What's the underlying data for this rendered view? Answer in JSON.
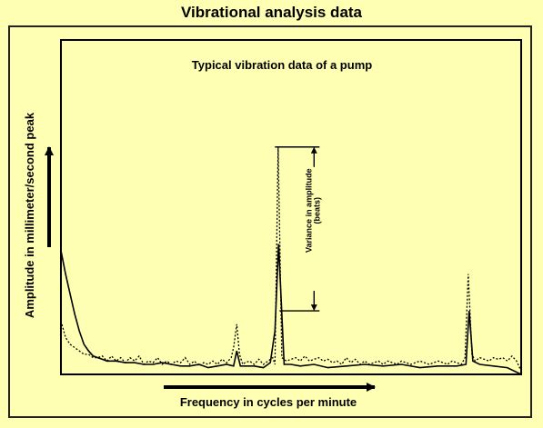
{
  "page": {
    "title": "Vibrational analysis data"
  },
  "chart_data": {
    "type": "line",
    "title": "Typical vibration data of a pump",
    "xlabel": "Frequency in cycles  per minute",
    "ylabel": "Amplitude in millimeter/second peak",
    "xlim": [
      0,
      100
    ],
    "ylim": [
      0,
      100
    ],
    "grid": false,
    "legend": "none",
    "series": [
      {
        "style": "solid",
        "color": "#000000",
        "x": [
          0,
          1,
          2,
          3,
          4,
          5,
          6,
          7,
          8,
          9,
          10,
          12,
          14,
          16,
          18,
          20,
          22,
          24,
          26,
          28,
          30,
          32,
          34,
          36,
          37.5,
          38.2,
          39,
          40,
          42,
          44,
          45.5,
          46.5,
          47.3,
          48.5,
          50,
          52,
          55,
          58,
          62,
          66,
          70,
          74,
          78,
          82,
          86,
          88,
          88.7,
          89.5,
          91,
          94,
          97,
          100
        ],
        "y": [
          37,
          30,
          24,
          18,
          13,
          9,
          7,
          5.5,
          5,
          4.5,
          4,
          4,
          3.5,
          3.5,
          3,
          3,
          3.5,
          3,
          2.5,
          2.5,
          3,
          2,
          2.5,
          3,
          2.5,
          7,
          2.5,
          2.5,
          2.5,
          2,
          3.5,
          13,
          39,
          3,
          3,
          2.5,
          3,
          2,
          2.5,
          3,
          2.5,
          3,
          2,
          2.5,
          2.5,
          3,
          19,
          4,
          3,
          2.5,
          2,
          0
        ]
      },
      {
        "style": "dotted",
        "color": "#000000",
        "x": [
          0,
          1,
          2,
          3,
          4,
          5,
          6,
          7,
          8,
          9,
          10,
          11,
          12,
          13,
          14,
          15,
          16,
          17,
          18,
          19,
          20,
          21,
          22,
          23,
          24,
          25,
          26,
          27,
          28,
          29,
          30,
          31,
          32,
          33,
          34,
          35,
          36,
          37,
          37.5,
          38.2,
          38.8,
          39.5,
          40,
          41,
          42,
          43,
          44,
          45,
          46,
          46.5,
          47.2,
          48,
          49,
          50,
          51,
          52,
          53,
          54,
          55,
          56,
          57,
          58,
          59,
          60,
          61,
          62,
          63,
          64,
          65,
          66,
          67,
          68,
          69,
          70,
          71,
          72,
          73,
          74,
          75,
          76,
          77,
          78,
          79,
          80,
          81,
          82,
          83,
          84,
          85,
          86,
          87,
          87.8,
          88.5,
          89.3,
          90,
          91,
          92,
          93,
          94,
          95,
          96,
          97,
          98,
          99,
          100
        ],
        "y": [
          16,
          11,
          9,
          8,
          7,
          6,
          6,
          5,
          5,
          5.5,
          4,
          5.5,
          4,
          5,
          3.5,
          5,
          4,
          5.5,
          3,
          4,
          3.5,
          5,
          3,
          4,
          3,
          4,
          3.5,
          5,
          3,
          4,
          2.5,
          3.5,
          3,
          4,
          3,
          4.5,
          3.5,
          5,
          8,
          15,
          6,
          3,
          3.5,
          4,
          3,
          4.5,
          3,
          4,
          5,
          3,
          68,
          5,
          4,
          4.5,
          5,
          4,
          5.5,
          4,
          4.5,
          5,
          4,
          4.5,
          3.5,
          4,
          3,
          5,
          3.5,
          4.5,
          3,
          4,
          3,
          3.5,
          4,
          3,
          4,
          3.5,
          3,
          4,
          3.5,
          3,
          3.5,
          4,
          3.5,
          3,
          3.5,
          4,
          3.5,
          3,
          4,
          3.5,
          3,
          5,
          30,
          6,
          4,
          5,
          4.5,
          4,
          5,
          4.5,
          5,
          4,
          5.5,
          4,
          1
        ]
      }
    ],
    "annotations": [
      {
        "text": "Variance in amplitude",
        "x": 54,
        "y": 49
      },
      {
        "text": "(beats)",
        "x": 55.8,
        "y": 49
      }
    ],
    "variance_range": {
      "x": 55,
      "y_top": 68,
      "y_bottom": 19
    }
  }
}
